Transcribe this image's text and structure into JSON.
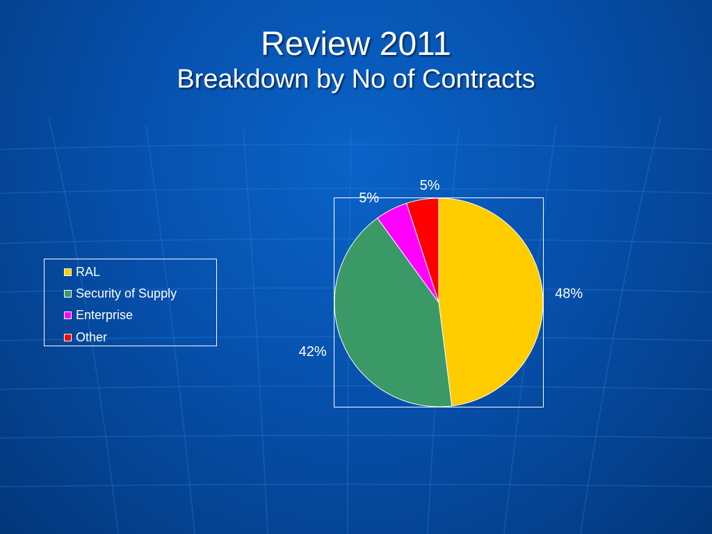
{
  "slide": {
    "title": "Review 2011",
    "subtitle": "Breakdown by No of Contracts"
  },
  "chart_data": {
    "type": "pie",
    "title": "",
    "categories": [
      "RAL",
      "Security of Supply",
      "Enterprise",
      "Other"
    ],
    "values": [
      48,
      42,
      5,
      5
    ],
    "labels": [
      "48%",
      "42%",
      "5%",
      "5%"
    ],
    "colors": [
      "#ffcc00",
      "#3a9966",
      "#ff00ff",
      "#ff0000"
    ],
    "legend_position": "left"
  }
}
